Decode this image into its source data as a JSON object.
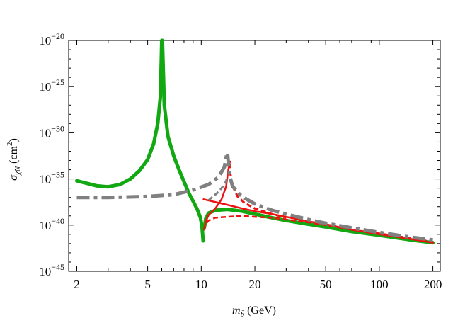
{
  "chart_data": {
    "type": "line",
    "title": "",
    "xlabel_base": "m",
    "xlabel_sub": "b̃",
    "xlabel_unit": "(GeV)",
    "ylabel_base": "σ",
    "ylabel_sub": "χN",
    "ylabel_unit": "(cm",
    "ylabel_unit_sup": "2",
    "ylabel_unit_close": ")",
    "x_scale": "log",
    "y_scale": "log10-exponent",
    "xlim": [
      1.8,
      220
    ],
    "ylim": [
      -45,
      -20
    ],
    "x_ticks": [
      2,
      5,
      10,
      20,
      50,
      100,
      200
    ],
    "x_tick_labels": [
      "2",
      "5",
      "10",
      "20",
      "50",
      "100",
      "200"
    ],
    "y_ticks": [
      -45,
      -40,
      -35,
      -30,
      -25,
      -20
    ],
    "y_tick_labels": [
      {
        "base": "10",
        "exp": "−45"
      },
      {
        "base": "10",
        "exp": "−40"
      },
      {
        "base": "10",
        "exp": "−35"
      },
      {
        "base": "10",
        "exp": "−30"
      },
      {
        "base": "10",
        "exp": "−25"
      },
      {
        "base": "10",
        "exp": "−20"
      }
    ],
    "grid": false,
    "series": [
      {
        "color": "#12a812",
        "style": "solid",
        "width": 5,
        "points": [
          [
            2.0,
            -35.2
          ],
          [
            2.3,
            -35.5
          ],
          [
            2.6,
            -35.75
          ],
          [
            3.0,
            -35.85
          ],
          [
            3.5,
            -35.6
          ],
          [
            4.0,
            -35.0
          ],
          [
            4.5,
            -34.1
          ],
          [
            5.0,
            -32.9
          ],
          [
            5.4,
            -31.2
          ],
          [
            5.7,
            -29.0
          ],
          [
            5.9,
            -26.0
          ],
          [
            6.0,
            -20.0
          ]
        ]
      },
      {
        "color": "#12a812",
        "style": "solid",
        "width": 5,
        "points": [
          [
            6.05,
            -20.0
          ],
          [
            6.2,
            -27.0
          ],
          [
            6.5,
            -30.4
          ],
          [
            7.0,
            -32.5
          ],
          [
            7.5,
            -34.0
          ],
          [
            8.0,
            -35.3
          ],
          [
            8.5,
            -36.5
          ],
          [
            9.0,
            -37.4
          ],
          [
            9.5,
            -38.3
          ],
          [
            9.9,
            -39.2
          ],
          [
            10.1,
            -40.2
          ],
          [
            10.25,
            -41.7
          ]
        ]
      },
      {
        "color": "#12a812",
        "style": "solid",
        "width": 5,
        "points": [
          [
            10.4,
            -40.3
          ],
          [
            10.6,
            -39.3
          ],
          [
            11.0,
            -38.7
          ],
          [
            12.0,
            -38.4
          ],
          [
            14.0,
            -38.3
          ],
          [
            17.0,
            -38.5
          ],
          [
            20.0,
            -38.8
          ],
          [
            25.0,
            -39.2
          ],
          [
            30.0,
            -39.5
          ],
          [
            40.0,
            -39.9
          ],
          [
            50.0,
            -40.2
          ],
          [
            70.0,
            -40.7
          ],
          [
            100.0,
            -41.1
          ],
          [
            150.0,
            -41.6
          ],
          [
            200.0,
            -41.9
          ]
        ]
      },
      {
        "color": "#ee1111",
        "style": "solid",
        "width": 2.5,
        "points": [
          [
            10.3,
            -37.2
          ],
          [
            12.0,
            -37.5
          ],
          [
            14.0,
            -37.8
          ],
          [
            17.0,
            -38.2
          ],
          [
            20.0,
            -38.5
          ],
          [
            25.0,
            -38.8
          ],
          [
            30.0,
            -39.1
          ],
          [
            40.0,
            -39.6
          ],
          [
            50.0,
            -39.9
          ],
          [
            70.0,
            -40.5
          ],
          [
            100.0,
            -41.0
          ],
          [
            150.0,
            -41.5
          ],
          [
            200.0,
            -41.9
          ]
        ]
      },
      {
        "color": "#ee1111",
        "style": "solid",
        "width": 2.5,
        "points": [
          [
            10.4,
            -40.5
          ],
          [
            10.6,
            -39.6
          ],
          [
            11.0,
            -38.9
          ],
          [
            12.0,
            -38.2
          ],
          [
            13.0,
            -37.2
          ],
          [
            13.8,
            -35.8
          ],
          [
            14.2,
            -34.0
          ],
          [
            14.5,
            -33.1
          ]
        ]
      },
      {
        "color": "#ee1111",
        "style": "dashed",
        "width": 2.5,
        "points": [
          [
            10.3,
            -40.5
          ],
          [
            10.6,
            -39.9
          ],
          [
            11.0,
            -39.5
          ],
          [
            12.0,
            -39.2
          ],
          [
            14.0,
            -39.1
          ],
          [
            17.0,
            -39.0
          ],
          [
            20.0,
            -39.1
          ],
          [
            25.0,
            -39.2
          ],
          [
            30.0,
            -39.4
          ],
          [
            40.0,
            -39.7
          ],
          [
            50.0,
            -40.0
          ],
          [
            70.0,
            -40.5
          ],
          [
            100.0,
            -40.9
          ],
          [
            150.0,
            -41.4
          ],
          [
            200.0,
            -41.8
          ]
        ]
      },
      {
        "color": "#ee1111",
        "style": "dashed",
        "width": 3,
        "points": [
          [
            14.4,
            -33.3
          ],
          [
            14.6,
            -34.5
          ],
          [
            15.0,
            -35.8
          ],
          [
            16.0,
            -36.9
          ],
          [
            17.5,
            -37.6
          ],
          [
            20.0,
            -38.2
          ],
          [
            25.0,
            -38.8
          ],
          [
            30.0,
            -39.2
          ]
        ]
      },
      {
        "color": "#808080",
        "style": "dashdot",
        "width": 5,
        "points": [
          [
            2.0,
            -37.0
          ],
          [
            3.0,
            -37.0
          ],
          [
            5.0,
            -36.9
          ],
          [
            7.0,
            -36.7
          ],
          [
            9.0,
            -36.2
          ],
          [
            11.0,
            -35.6
          ],
          [
            12.5,
            -34.8
          ],
          [
            13.5,
            -33.7
          ],
          [
            14.0,
            -32.0
          ]
        ]
      },
      {
        "color": "#808080",
        "style": "dashdot",
        "width": 5,
        "points": [
          [
            14.05,
            -32.3
          ],
          [
            14.4,
            -34.6
          ],
          [
            15.0,
            -35.8
          ],
          [
            16.5,
            -36.7
          ],
          [
            18.0,
            -37.2
          ],
          [
            20.0,
            -37.7
          ],
          [
            25.0,
            -38.4
          ],
          [
            30.0,
            -38.8
          ],
          [
            40.0,
            -39.4
          ],
          [
            50.0,
            -39.8
          ],
          [
            70.0,
            -40.3
          ],
          [
            100.0,
            -40.8
          ],
          [
            150.0,
            -41.3
          ],
          [
            200.0,
            -41.6
          ]
        ]
      },
      {
        "color": "#808080",
        "style": "dashed",
        "width": 3,
        "points": [
          [
            11.0,
            -37.3
          ],
          [
            12.5,
            -36.4
          ],
          [
            13.5,
            -35.6
          ],
          [
            14.0,
            -34.9
          ]
        ]
      }
    ]
  }
}
